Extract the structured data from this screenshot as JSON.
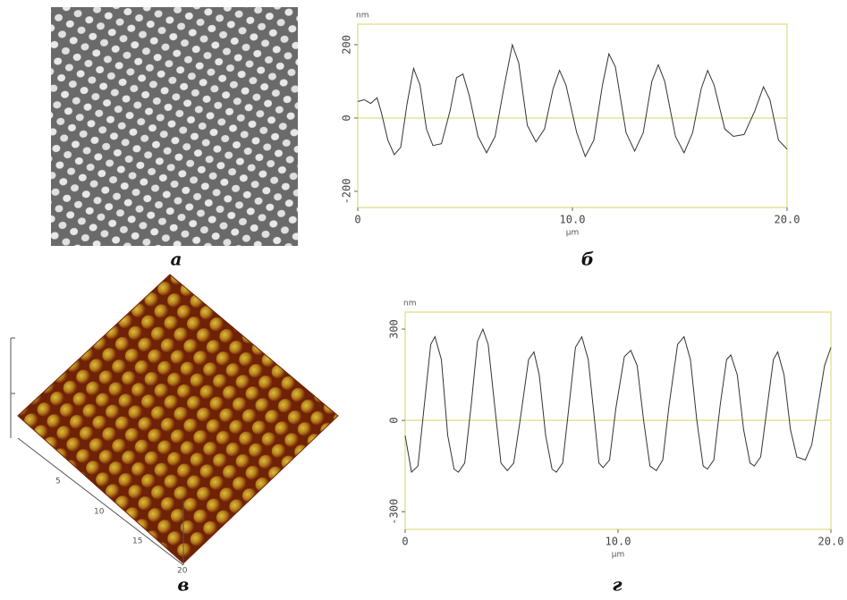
{
  "panel_labels": [
    "а",
    "б",
    "в",
    "г"
  ],
  "afm_axis_labels": [
    "5",
    "10",
    "15",
    "20"
  ],
  "chart_data": [
    {
      "type": "line",
      "y_unit": "nm",
      "x_label": "μm",
      "xlim": [
        0,
        20
      ],
      "xticks": [
        0,
        {
          "value": 10,
          "label": "10.0"
        },
        {
          "value": 20,
          "label": "20.0"
        }
      ],
      "ylim": [
        -244,
        256
      ],
      "yticks": [
        200,
        0,
        -200
      ],
      "zero_line": true,
      "frame_color": "#e4e49a",
      "x": [
        0,
        0.3,
        0.6,
        0.9,
        1.1,
        1.4,
        1.7,
        2.0,
        2.3,
        2.6,
        2.9,
        3.2,
        3.5,
        3.9,
        4.3,
        4.6,
        4.9,
        5.2,
        5.6,
        6.0,
        6.4,
        6.8,
        7.2,
        7.5,
        7.9,
        8.3,
        8.7,
        9.1,
        9.4,
        9.7,
        10.2,
        10.6,
        11.0,
        11.4,
        11.7,
        12.0,
        12.5,
        12.9,
        13.3,
        13.7,
        14.0,
        14.3,
        14.8,
        15.2,
        15.6,
        16.0,
        16.3,
        16.6,
        17.1,
        17.5,
        18.0,
        18.5,
        18.9,
        19.2,
        19.6,
        20.0
      ],
      "series": [
        {
          "color": "#333333",
          "values": [
            45,
            50,
            40,
            55,
            15,
            -60,
            -100,
            -80,
            40,
            135,
            90,
            -30,
            -75,
            -70,
            20,
            110,
            120,
            60,
            -50,
            -95,
            -50,
            80,
            200,
            150,
            -20,
            -65,
            -30,
            80,
            130,
            90,
            -40,
            -105,
            -60,
            90,
            175,
            140,
            -40,
            -90,
            -40,
            100,
            145,
            100,
            -50,
            -95,
            -40,
            80,
            130,
            90,
            -30,
            -50,
            -45,
            20,
            85,
            50,
            -60,
            -85
          ]
        }
      ]
    },
    {
      "type": "line",
      "y_unit": "nm",
      "x_label": "μm",
      "xlim": [
        0,
        20
      ],
      "xticks": [
        0,
        {
          "value": 10,
          "label": "10.0"
        },
        {
          "value": 20,
          "label": "20.0"
        }
      ],
      "ylim": [
        -358,
        356
      ],
      "yticks": [
        300,
        0,
        -300
      ],
      "zero_line": true,
      "frame_color": "#e4e49a",
      "x": [
        0,
        0.3,
        0.6,
        0.9,
        1.2,
        1.4,
        1.7,
        2.0,
        2.3,
        2.5,
        2.8,
        3.1,
        3.4,
        3.65,
        3.9,
        4.2,
        4.5,
        4.8,
        5.1,
        5.4,
        5.8,
        6.05,
        6.3,
        6.6,
        6.9,
        7.1,
        7.4,
        7.7,
        8.0,
        8.3,
        8.6,
        8.9,
        9.1,
        9.3,
        9.6,
        9.9,
        10.3,
        10.6,
        10.9,
        11.2,
        11.5,
        11.8,
        12.1,
        12.4,
        12.8,
        13.1,
        13.4,
        13.7,
        14.0,
        14.2,
        14.5,
        14.8,
        15.1,
        15.3,
        15.6,
        15.9,
        16.2,
        16.4,
        16.7,
        17.0,
        17.3,
        17.5,
        17.8,
        18.1,
        18.4,
        18.8,
        19.1,
        19.4,
        19.7,
        20.0
      ],
      "series": [
        {
          "color": "#333333",
          "values": [
            -50,
            -170,
            -150,
            50,
            250,
            275,
            200,
            -50,
            -160,
            -170,
            -140,
            50,
            260,
            300,
            250,
            50,
            -140,
            -165,
            -140,
            0,
            200,
            225,
            150,
            -50,
            -160,
            -170,
            -140,
            50,
            240,
            275,
            200,
            0,
            -140,
            -155,
            -130,
            40,
            210,
            230,
            180,
            0,
            -150,
            -165,
            -130,
            50,
            250,
            275,
            200,
            0,
            -150,
            -160,
            -130,
            50,
            200,
            215,
            150,
            -30,
            -140,
            -150,
            -120,
            40,
            200,
            225,
            150,
            -30,
            -120,
            -130,
            -80,
            50,
            180,
            240
          ]
        }
      ]
    }
  ]
}
